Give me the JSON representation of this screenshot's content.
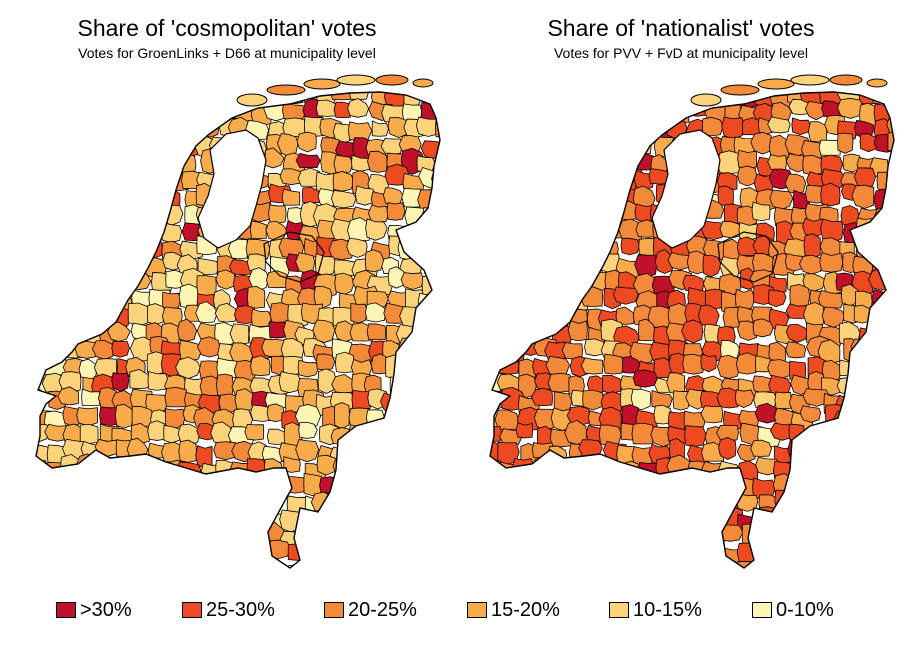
{
  "colors": {
    "c30plus": "#c0102a",
    "c25_30": "#ee4a22",
    "c20_25": "#f38a3a",
    "c15_20": "#f8ab4a",
    "c10_15": "#fbd37a",
    "c0_10": "#fdf5b4",
    "water": "#ffffff",
    "border": "#000000"
  },
  "maps": [
    {
      "title": "Share of 'cosmopolitan' votes",
      "subtitle": "Votes for GroenLinks + D66 at municipality level",
      "palette_weights": [
        0.05,
        0.08,
        0.2,
        0.3,
        0.27,
        0.1
      ]
    },
    {
      "title": "Share of 'nationalist' votes",
      "subtitle": "Votes for PVV + FvD at municipality level",
      "palette_weights": [
        0.08,
        0.3,
        0.42,
        0.13,
        0.06,
        0.01
      ]
    }
  ],
  "legend": {
    "items": [
      {
        "label": ">30%",
        "color": "#c0102a"
      },
      {
        "label": "25-30%",
        "color": "#ee4a22"
      },
      {
        "label": "20-25%",
        "color": "#f38a3a"
      },
      {
        "label": "15-20%",
        "color": "#f8ab4a"
      },
      {
        "label": "10-15%",
        "color": "#fbd37a"
      },
      {
        "label": "0-10%",
        "color": "#fdf5b4"
      }
    ]
  }
}
